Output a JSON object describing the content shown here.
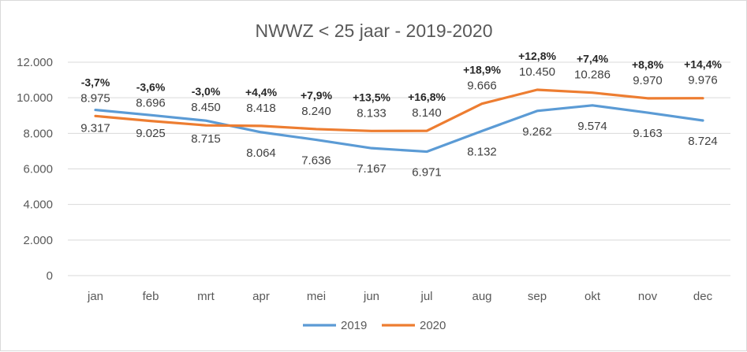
{
  "chart_data": {
    "type": "line",
    "title": "NWWZ < 25 jaar - 2019-2020",
    "categories": [
      "jan",
      "feb",
      "mrt",
      "apr",
      "mei",
      "jun",
      "jul",
      "aug",
      "sep",
      "okt",
      "nov",
      "dec"
    ],
    "y_tick_labels": [
      "0",
      "2.000",
      "4.000",
      "6.000",
      "8.000",
      "10.000",
      "12.000"
    ],
    "ylim": [
      0,
      12000
    ],
    "grid": true,
    "legend_position": "bottom",
    "series": [
      {
        "name": "2019",
        "color": "#5B9BD5",
        "values": [
          9317,
          9025,
          8715,
          8064,
          7636,
          7167,
          6971,
          8132,
          9262,
          9574,
          9163,
          8724
        ],
        "labels": [
          "9.317",
          "9.025",
          "8.715",
          "8.064",
          "7.636",
          "7.167",
          "6.971",
          "8.132",
          "9.262",
          "9.574",
          "9.163",
          "8.724"
        ]
      },
      {
        "name": "2020",
        "color": "#ED7D31",
        "values": [
          8975,
          8696,
          8450,
          8418,
          8240,
          8133,
          8140,
          9666,
          10450,
          10286,
          9970,
          9976
        ],
        "labels": [
          "8.975",
          "8.696",
          "8.450",
          "8.418",
          "8.240",
          "8.133",
          "8.140",
          "9.666",
          "10.450",
          "10.286",
          "9.970",
          "9.976"
        ]
      }
    ],
    "change_labels": [
      "-3,7%",
      "-3,6%",
      "-3,0%",
      "+4,4%",
      "+7,9%",
      "+13,5%",
      "+16,8%",
      "+18,9%",
      "+12,8%",
      "+7,4%",
      "+8,8%",
      "+14,4%"
    ]
  }
}
